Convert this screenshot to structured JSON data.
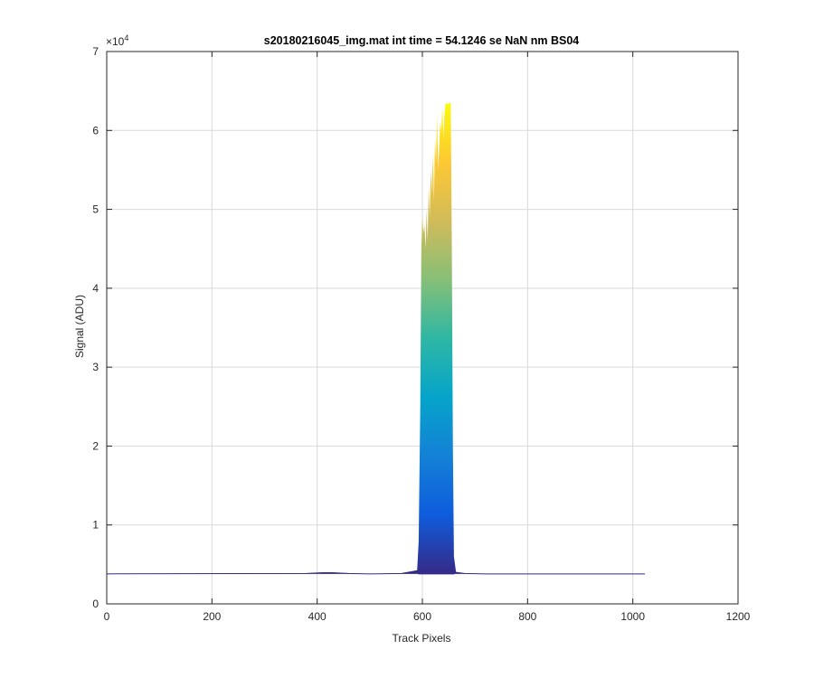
{
  "chart_data": {
    "type": "area",
    "title": "s20180216045_img.mat int time = 54.1246 se  NaN nm BS04",
    "xlabel": "Track Pixels",
    "ylabel": "Signal (ADU)",
    "xlim": [
      0,
      1200
    ],
    "ylim": [
      0,
      70000
    ],
    "xticks": [
      0,
      200,
      400,
      600,
      800,
      1000,
      1200
    ],
    "yticks": [
      0,
      1,
      2,
      3,
      4,
      5,
      6,
      7
    ],
    "y_exponent_label": "×10",
    "y_exponent": "4",
    "grid": true,
    "colormap": [
      "#352a87",
      "#0f5cdd",
      "#1481d6",
      "#06a4ca",
      "#2eb7a4",
      "#87bf77",
      "#d1bb59",
      "#fec832",
      "#f9fb0e"
    ],
    "series": [
      {
        "x": [
          0,
          380,
          410,
          430,
          460,
          500,
          560,
          590,
          593,
          596,
          598,
          600,
          602,
          604,
          606,
          608,
          610,
          612,
          614,
          616,
          618,
          620,
          622,
          624,
          626,
          628,
          630,
          632,
          634,
          636,
          638,
          640,
          642,
          644,
          646,
          648,
          650,
          652,
          654,
          656,
          658,
          660,
          664,
          680,
          720,
          800,
          900,
          1023
        ],
        "y": [
          3800,
          3850,
          3950,
          3950,
          3850,
          3800,
          3850,
          4200,
          8000,
          25000,
          45000,
          49000,
          47000,
          48000,
          45000,
          50000,
          46000,
          53000,
          49000,
          55000,
          52000,
          57000,
          51000,
          59000,
          56000,
          62000,
          55000,
          58000,
          61000,
          60000,
          63000,
          59000,
          62000,
          63400,
          63500,
          63300,
          63400,
          63500,
          63500,
          45000,
          20000,
          6000,
          4000,
          3850,
          3800,
          3800,
          3800,
          3800
        ]
      }
    ]
  }
}
